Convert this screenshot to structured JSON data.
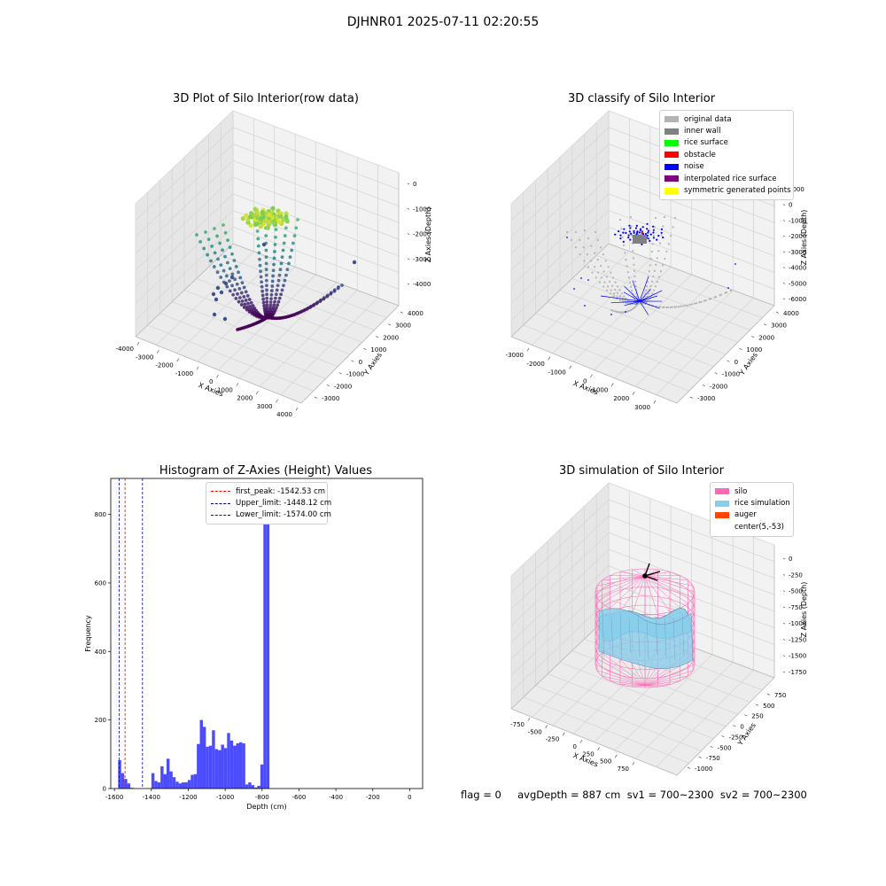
{
  "suptitle": "DJHNR01 2025-07-11 02:20:55",
  "footer": "flag = 0     avgDepth = 887 cm  sv1 = 700~2300  sv2 = 700~2300",
  "colors": {
    "raw_low": "#440154",
    "raw_mid": "#21918c",
    "raw_high": "#fde725",
    "original": "#b3b3b3",
    "inner_wall": "#808080",
    "rice_surface": "#00ff00",
    "obstacle": "#ff0000",
    "noise": "#0000ff",
    "interpolated": "#800080",
    "symmetric": "#ffff00",
    "hist_bar": "#4b4bff",
    "silo": "#ff69b4",
    "rice_sim": "#87ceeb",
    "auger": "#ff4500"
  },
  "chart_data": [
    {
      "type": "scatter",
      "title": "3D Plot of Silo Interior(row data)",
      "xlabel": "X Axies",
      "ylabel": "Y Axies",
      "zlabel": "Z Axies (Depth)",
      "x_ticks": [
        "-4000",
        "-3000",
        "-2000",
        "-1000",
        "0",
        "1000",
        "2000",
        "3000",
        "4000"
      ],
      "y_ticks": [
        "-3000",
        "-2000",
        "-1000",
        "0",
        "1000",
        "2000",
        "3000",
        "4000"
      ],
      "z_ticks": [
        "-4000",
        "-3000",
        "-2000",
        "-1000",
        "0"
      ],
      "xlim": [
        -4000,
        4000
      ],
      "ylim": [
        -3000,
        4000
      ],
      "zlim": [
        -4500,
        200
      ],
      "arcs_count": 12,
      "colormap": "viridis",
      "grid": true
    },
    {
      "type": "scatter",
      "title": "3D classify of Silo Interior",
      "xlabel": "X Axies",
      "ylabel": "Y Axies",
      "zlabel": "Z Axies (Depth)",
      "x_ticks": [
        "-3000",
        "-2000",
        "-1000",
        "0",
        "1000",
        "2000",
        "3000"
      ],
      "y_ticks": [
        "-3000",
        "-2000",
        "-1000",
        "0",
        "1000",
        "2000",
        "3000",
        "4000"
      ],
      "z_ticks": [
        "-6000",
        "-5000",
        "-4000",
        "-3000",
        "-2000",
        "-1000",
        "0",
        "1000"
      ],
      "xlim": [
        -3500,
        3500
      ],
      "ylim": [
        -3000,
        4000
      ],
      "zlim": [
        -6000,
        1000
      ],
      "legend": [
        "original data",
        "inner wall",
        "rice surface",
        "obstacle",
        "noise",
        "interpolated rice surface",
        "symmetric generated points"
      ],
      "legend_loc": "top-right",
      "grid": true
    },
    {
      "type": "bar",
      "title": "Histogram of Z-Axies (Height) Values",
      "xlabel": "Depth (cm)",
      "ylabel": "Frequency",
      "x_ticks": [
        "-1600",
        "-1400",
        "-1200",
        "-1000",
        "-800",
        "-600",
        "-400",
        "-200",
        "0"
      ],
      "y_ticks": [
        "0",
        "200",
        "400",
        "600",
        "800"
      ],
      "xlim": [
        -1620,
        70
      ],
      "ylim": [
        0,
        905
      ],
      "bin_start": -1580,
      "bin_width": 16.4,
      "values": [
        83,
        45,
        28,
        15,
        2,
        0,
        0,
        0,
        0,
        0,
        0,
        45,
        22,
        18,
        65,
        42,
        87,
        50,
        33,
        20,
        15,
        18,
        18,
        25,
        40,
        42,
        130,
        200,
        180,
        122,
        125,
        170,
        115,
        112,
        128,
        118,
        162,
        140,
        125,
        132,
        135,
        132,
        12,
        18,
        10,
        3,
        8,
        70,
        835,
        865
      ],
      "lines": [
        {
          "label": "first_peak: -1542.53 cm",
          "x": -1542.53,
          "color": "#ff0000"
        },
        {
          "label": "Upper_limit: -1448.12 cm",
          "x": -1448.12,
          "color": "#00008b"
        },
        {
          "label": "Lower_limit: -1574.00 cm",
          "x": -1574.0,
          "color": "#0000ff"
        }
      ],
      "legend_loc": "top-center",
      "grid": false
    },
    {
      "type": "surface",
      "title": "3D simulation of Silo Interior",
      "xlabel": "X Axies",
      "ylabel": "Y Axies",
      "zlabel": "Z Axies (Depth)",
      "x_ticks": [
        "-750",
        "-500",
        "-250",
        "0",
        "250",
        "500",
        "750"
      ],
      "y_ticks": [
        "-1000",
        "-750",
        "-500",
        "-250",
        "0",
        "250",
        "500",
        "750"
      ],
      "z_ticks": [
        "-1750",
        "-1500",
        "-1250",
        "-1000",
        "-750",
        "-500",
        "-250",
        "0"
      ],
      "xlim": [
        -900,
        900
      ],
      "ylim": [
        -1000,
        900
      ],
      "zlim": [
        -1800,
        100
      ],
      "legend": [
        "silo",
        "rice simulation",
        "auger",
        "center(5,-53)"
      ],
      "legend_loc": "top-right",
      "center": [
        5,
        -53
      ],
      "grid": true
    }
  ]
}
